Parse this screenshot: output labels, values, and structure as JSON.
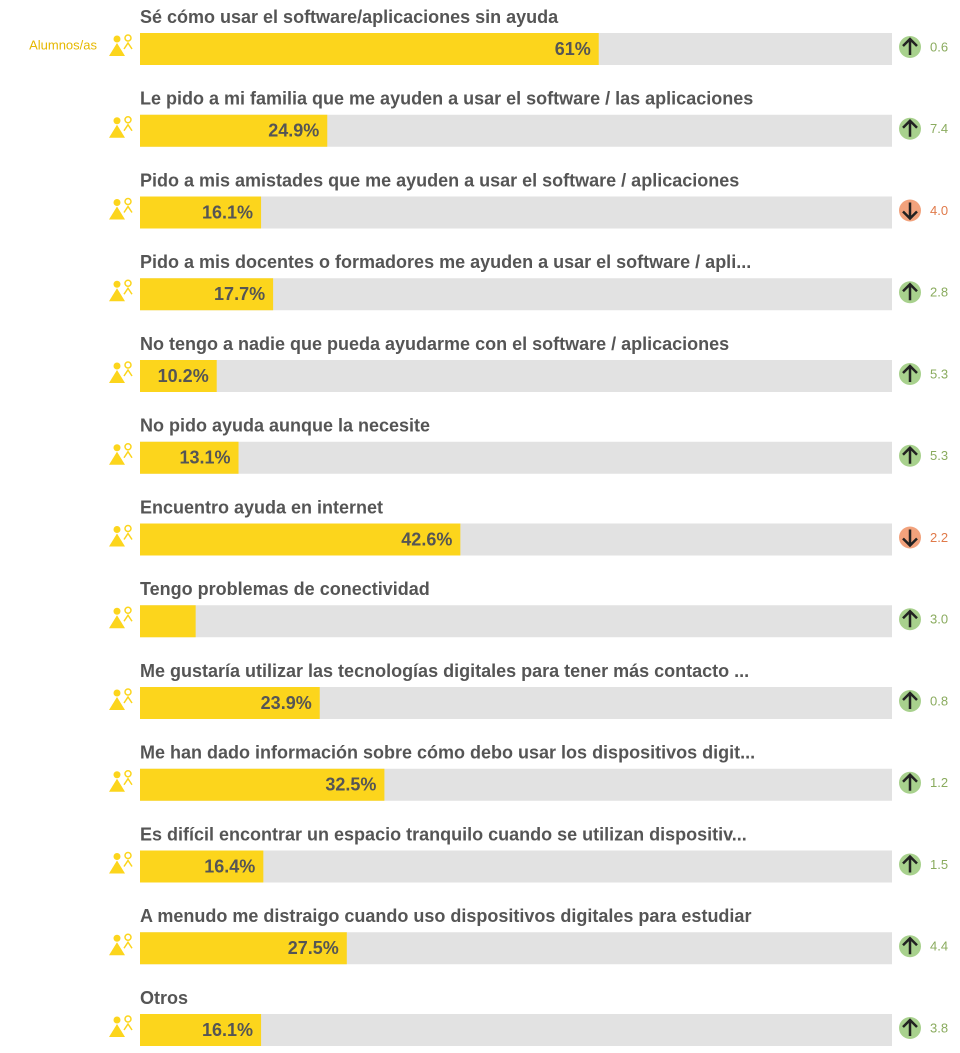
{
  "chart_data": {
    "type": "bar",
    "orientation": "horizontal",
    "legend": "Alumnos/as",
    "categories": [
      "Sé cómo usar el software/aplicaciones sin ayuda",
      "Le pido a mi familia que me ayuden a usar el software / las aplicaciones",
      "Pido a mis amistades que me ayuden a usar el software / aplicaciones",
      "Pido a mis docentes o formadores me ayuden a usar el software / apli...",
      "No tengo a nadie que pueda ayudarme con el software / aplicaciones",
      "No pido ayuda aunque la necesite",
      "Encuentro ayuda en internet",
      "Tengo problemas de conectividad",
      "Me gustaría utilizar las tecnologías digitales para tener más contacto ...",
      "Me han dado información sobre cómo debo usar los dispositivos digit...",
      "Es difícil encontrar un espacio tranquilo cuando se utilizan dispositiv...",
      "A menudo me distraigo cuando uso dispositivos digitales para estudiar",
      "Otros"
    ],
    "values": [
      61,
      24.9,
      16.1,
      17.7,
      10.2,
      13.1,
      42.6,
      7.4,
      23.9,
      32.5,
      16.4,
      27.5,
      16.1
    ],
    "value_labels": [
      "61%",
      "24.9%",
      "16.1%",
      "17.7%",
      "10.2%",
      "13.1%",
      "42.6%",
      null,
      "23.9%",
      "32.5%",
      "16.4%",
      "27.5%",
      "16.1%"
    ],
    "change_labels": [
      "0.6",
      "7.4",
      "4.0",
      "2.8",
      "5.3",
      "5.3",
      "2.2",
      "3.0",
      "0.8",
      "1.2",
      "1.5",
      "4.4",
      "3.8"
    ],
    "change_directions": [
      "up",
      "up",
      "down",
      "up",
      "up",
      "up",
      "down",
      "up",
      "up",
      "up",
      "up",
      "up",
      "up"
    ],
    "xlim": [
      0,
      100
    ],
    "color": "#fcd51c",
    "track_color": "#e2e2e2"
  }
}
